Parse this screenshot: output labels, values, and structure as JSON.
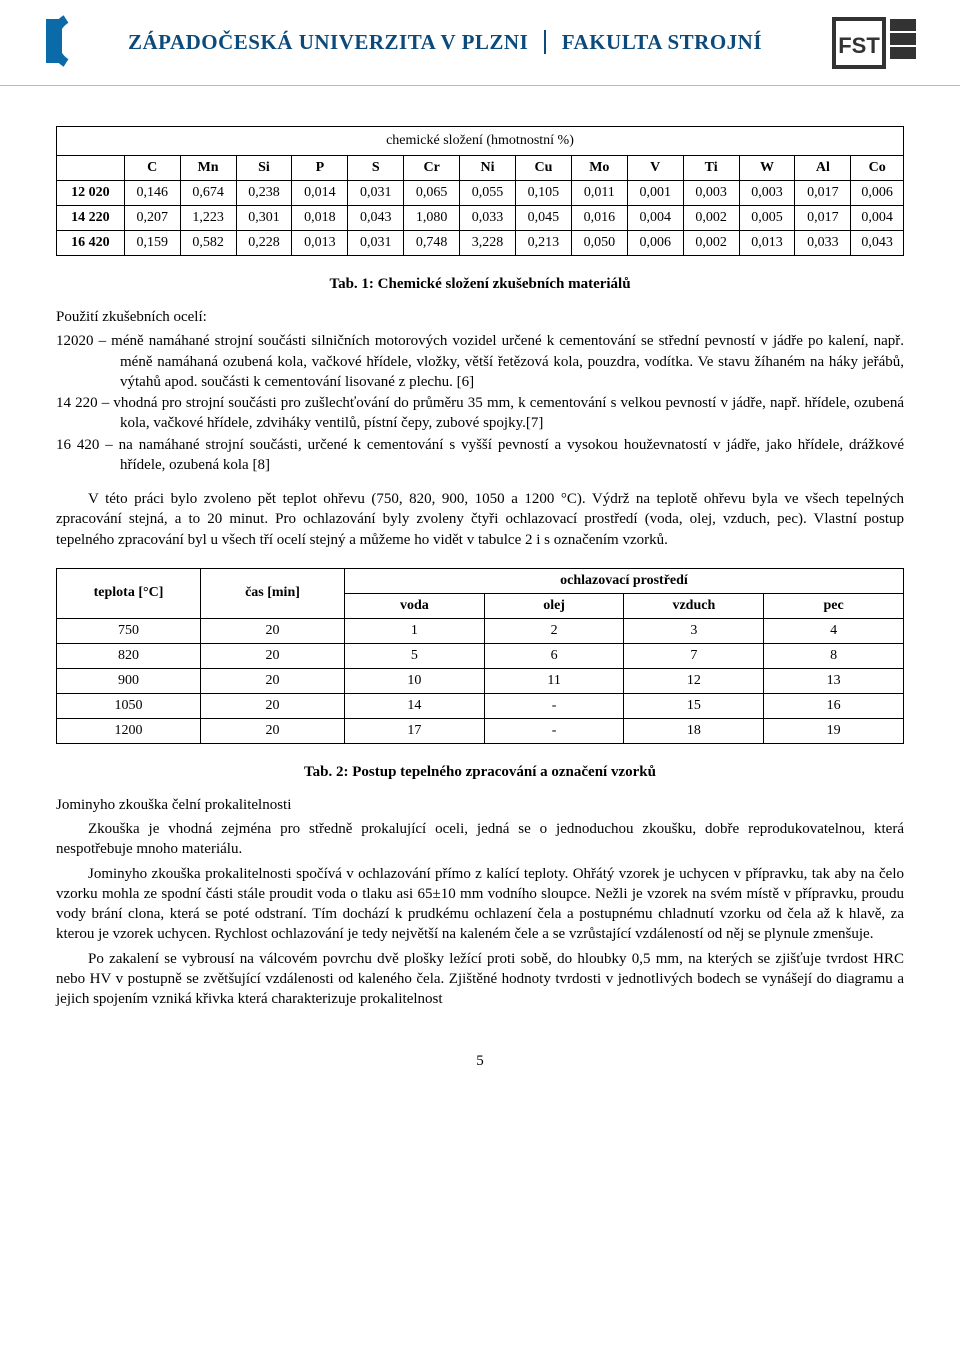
{
  "header": {
    "university": "ZÁPADOČESKÁ UNIVERZITA V PLZNI",
    "faculty": "FAKULTA STROJNÍ",
    "logo_zcu_color": "#0b6aa8",
    "fst_text": "FST",
    "fst_sub": "FAKULTA STROJNÍ"
  },
  "table1": {
    "title": "chemické složení (hmotnostní %)",
    "caption": "Tab. 1:  Chemické složení zkušebních materiálů",
    "columns": [
      "",
      "C",
      "Mn",
      "Si",
      "P",
      "S",
      "Cr",
      "Ni",
      "Cu",
      "Mo",
      "V",
      "Ti",
      "W",
      "Al",
      "Co"
    ],
    "rows": [
      [
        "12 020",
        "0,146",
        "0,674",
        "0,238",
        "0,014",
        "0,031",
        "0,065",
        "0,055",
        "0,105",
        "0,011",
        "0,001",
        "0,003",
        "0,003",
        "0,017",
        "0,006"
      ],
      [
        "14 220",
        "0,207",
        "1,223",
        "0,301",
        "0,018",
        "0,043",
        "1,080",
        "0,033",
        "0,045",
        "0,016",
        "0,004",
        "0,002",
        "0,005",
        "0,017",
        "0,004"
      ],
      [
        "16 420",
        "0,159",
        "0,582",
        "0,228",
        "0,013",
        "0,031",
        "0,748",
        "3,228",
        "0,213",
        "0,050",
        "0,006",
        "0,002",
        "0,013",
        "0,033",
        "0,043"
      ]
    ],
    "col_widths": [
      "8%",
      "6.6%",
      "6.6%",
      "6.6%",
      "6.6%",
      "6.6%",
      "6.6%",
      "6.6%",
      "6.6%",
      "6.6%",
      "6.6%",
      "6.6%",
      "6.6%",
      "6.6%",
      "6.6%"
    ]
  },
  "usage": {
    "heading": "Použití zkušebních ocelí:",
    "items": [
      "12020 – méně namáhané strojní součásti silničních motorových vozidel určené k cementování se střední pevností v jádře po kalení, např. méně namáhaná ozubená kola, vačkové hřídele, vložky, větší řetězová kola, pouzdra, vodítka. Ve stavu žíhaném na háky jeřábů, výtahů apod. součásti k cementování lisované z plechu. [6]",
      "14 220 – vhodná pro strojní součásti pro zušlechťování do průměru 35 mm, k cementování s velkou pevností v jádře, např. hřídele, ozubená kola, vačkové hřídele, zdviháky ventilů, pístní čepy, zubové spojky.[7]",
      "16 420 – na namáhané strojní součásti, určené k cementování s vyšší pevností a vysokou houževnatostí v jádře, jako hřídele, drážkové hřídele, ozubená kola [8]"
    ]
  },
  "para": {
    "p1": "V této práci bylo zvoleno pět teplot ohřevu (750, 820, 900, 1050 a 1200 °C). Výdrž na teplotě ohřevu byla ve všech tepelných zpracování stejná, a to 20 minut. Pro ochlazování byly zvoleny čtyři ochlazovací prostředí (voda, olej, vzduch, pec). Vlastní postup tepelného zpracování byl u všech tří ocelí stejný a můžeme ho vidět v tabulce 2 i s označením vzorků."
  },
  "table2": {
    "caption": "Tab. 2:  Postup tepelného zpracování a označení vzorků",
    "header_row1": [
      "teplota [°C]",
      "čas [min]",
      "ochlazovací prostředí"
    ],
    "header_row2": [
      "voda",
      "olej",
      "vzduch",
      "pec"
    ],
    "rows": [
      [
        "750",
        "20",
        "1",
        "2",
        "3",
        "4"
      ],
      [
        "820",
        "20",
        "5",
        "6",
        "7",
        "8"
      ],
      [
        "900",
        "20",
        "10",
        "11",
        "12",
        "13"
      ],
      [
        "1050",
        "20",
        "14",
        "-",
        "15",
        "16"
      ],
      [
        "1200",
        "20",
        "17",
        "-",
        "18",
        "19"
      ]
    ],
    "col_widths": [
      "17%",
      "17%",
      "16.5%",
      "16.5%",
      "16.5%",
      "16.5%"
    ]
  },
  "jominy": {
    "heading": "Jominyho zkouška čelní prokalitelnosti",
    "p1": "Zkouška je vhodná zejména pro středně prokalující oceli, jedná se o jednoduchou zkoušku, dobře reprodukovatelnou, která nespotřebuje mnoho materiálu.",
    "p2": "Jominyho zkouška prokalitelnosti spočívá v ochlazování přímo z kalící teploty. Ohřátý vzorek je uchycen v přípravku, tak aby na čelo vzorku mohla ze spodní části stále proudit voda o tlaku asi 65±10 mm vodního sloupce. Nežli je vzorek na svém místě v přípravku, proudu vody brání clona, která se poté odstraní. Tím dochází k prudkému ochlazení čela a postupnému chladnutí vzorku od čela až k hlavě, za kterou je vzorek uchycen. Rychlost ochlazování je tedy největší na kaleném čele a se vzrůstající vzdáleností od něj se plynule zmenšuje.",
    "p3": "Po zakalení se vybrousí na válcovém povrchu dvě plošky ležící proti sobě, do hloubky 0,5 mm, na kterých se zjišťuje tvrdost HRC nebo HV v postupně se zvětšující vzdálenosti od kaleného čela. Zjištěné hodnoty tvrdosti v jednotlivých bodech se vynášejí do diagramu a jejich spojením vzniká křivka která charakterizuje prokalitelnost"
  },
  "page_number": "5"
}
